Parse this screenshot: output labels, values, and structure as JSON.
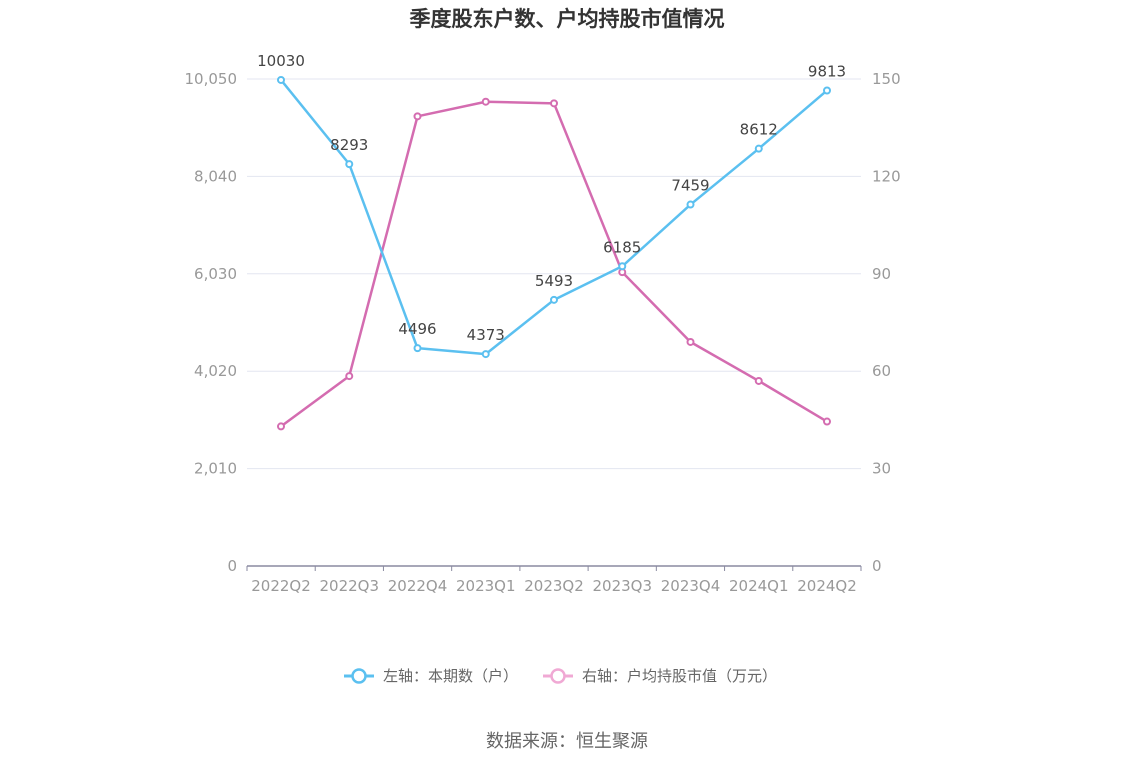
{
  "chart_data": {
    "type": "line",
    "title": "季度股东户数、户均持股市值情况",
    "categories": [
      "2022Q2",
      "2022Q3",
      "2022Q4",
      "2023Q1",
      "2023Q2",
      "2023Q3",
      "2023Q4",
      "2024Q1",
      "2024Q2"
    ],
    "left_axis": {
      "ticks": [
        "0",
        "2,010",
        "4,020",
        "6,030",
        "8,040",
        "10,050"
      ],
      "ylim": [
        0,
        10050
      ]
    },
    "right_axis": {
      "ticks": [
        "0",
        "30",
        "60",
        "90",
        "120",
        "150"
      ],
      "ylim": [
        0,
        150
      ]
    },
    "grid": true,
    "legend_position": "bottom",
    "series": [
      {
        "name": "左轴：本期数（户）",
        "axis": "left",
        "color": "#5bc0f0",
        "values": [
          10030,
          8293,
          4496,
          4373,
          5493,
          6185,
          7459,
          8612,
          9813
        ],
        "labels": [
          "10030",
          "8293",
          "4496",
          "4373",
          "5493",
          "6185",
          "7459",
          "8612",
          "9813"
        ]
      },
      {
        "name": "右轴：户均持股市值（万元）",
        "axis": "right",
        "color": "#d46cb0",
        "values": [
          43,
          58.5,
          138.5,
          143,
          142.5,
          90.5,
          69,
          57,
          44.5
        ]
      }
    ]
  },
  "legend_marker_colors": {
    "left": "#5bc0f0",
    "right": "#f0a9d4"
  },
  "source": "数据来源：恒生聚源"
}
